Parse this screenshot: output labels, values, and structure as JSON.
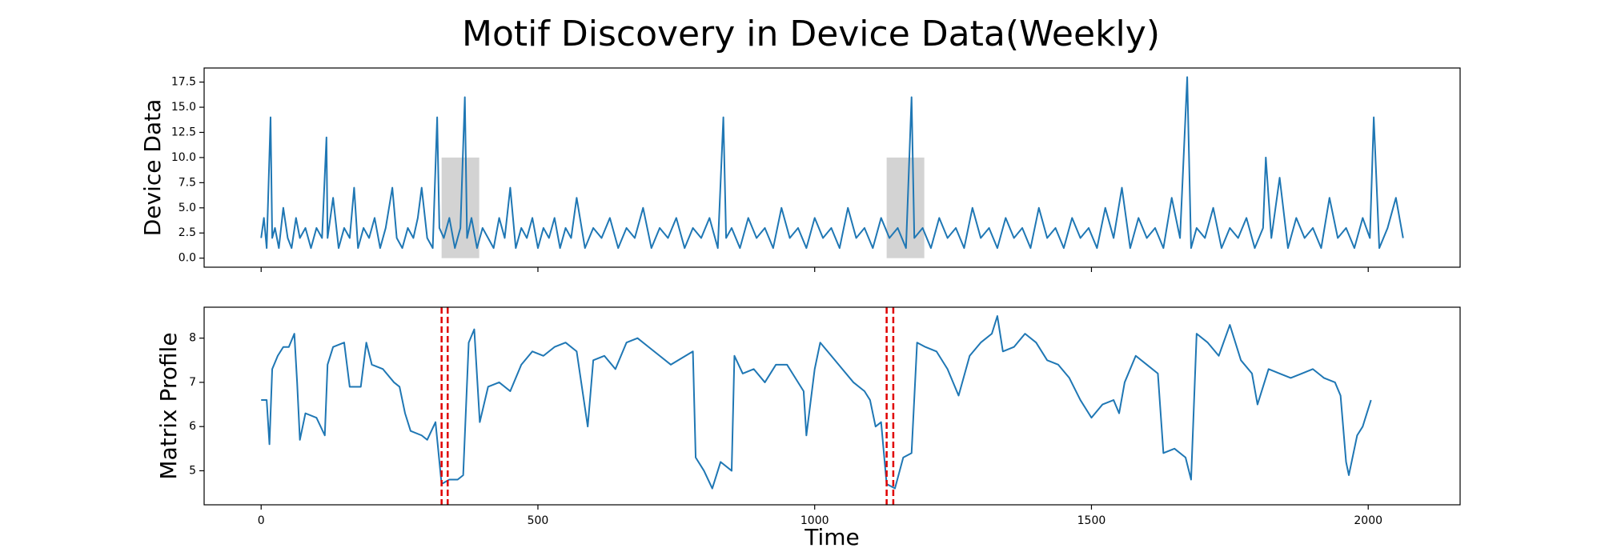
{
  "title": "Motif Discovery in Device Data(Weekly)",
  "chart_data": [
    {
      "type": "line",
      "ylabel": "Device Data",
      "color": "#1f77b4",
      "xlim": [
        -103,
        2166
      ],
      "ylim": [
        -0.9,
        18.9
      ],
      "yticks": [
        {
          "value": 0,
          "label": "0.0"
        },
        2.5,
        {
          "value": 5,
          "label": "5.0"
        },
        7.5,
        {
          "value": 10,
          "label": "10.0"
        },
        12.5,
        {
          "value": 15,
          "label": "15.0"
        },
        17.5
      ],
      "spans": [
        {
          "x": [
            326,
            394
          ],
          "y": [
            0,
            10
          ],
          "color": "#d3d3d3"
        },
        {
          "x": [
            1130,
            1198
          ],
          "y": [
            0,
            10
          ],
          "color": "#d3d3d3"
        }
      ],
      "x": [
        0,
        5,
        10,
        17,
        20,
        25,
        32,
        40,
        48,
        55,
        63,
        70,
        80,
        90,
        100,
        110,
        118,
        120,
        130,
        140,
        150,
        160,
        168,
        175,
        185,
        195,
        205,
        215,
        225,
        237,
        245,
        255,
        265,
        275,
        283,
        290,
        300,
        310,
        318,
        322,
        330,
        340,
        350,
        360,
        368,
        372,
        380,
        390,
        400,
        410,
        420,
        430,
        440,
        450,
        460,
        470,
        480,
        490,
        500,
        510,
        520,
        530,
        540,
        550,
        560,
        570,
        585,
        600,
        615,
        630,
        645,
        660,
        675,
        690,
        705,
        720,
        735,
        750,
        765,
        780,
        795,
        810,
        825,
        835,
        840,
        850,
        865,
        880,
        895,
        910,
        925,
        940,
        955,
        970,
        985,
        1000,
        1015,
        1030,
        1045,
        1060,
        1075,
        1090,
        1105,
        1120,
        1135,
        1150,
        1165,
        1175,
        1180,
        1195,
        1210,
        1225,
        1240,
        1255,
        1270,
        1285,
        1300,
        1315,
        1330,
        1345,
        1360,
        1375,
        1390,
        1405,
        1420,
        1435,
        1450,
        1465,
        1480,
        1495,
        1510,
        1525,
        1540,
        1555,
        1570,
        1585,
        1600,
        1615,
        1630,
        1645,
        1660,
        1673,
        1680,
        1690,
        1705,
        1720,
        1735,
        1750,
        1765,
        1780,
        1795,
        1810,
        1815,
        1825,
        1840,
        1855,
        1870,
        1885,
        1900,
        1915,
        1930,
        1945,
        1960,
        1975,
        1990,
        2003,
        2010,
        2020,
        2035,
        2050,
        2063
      ],
      "values": [
        2,
        4,
        1,
        14,
        2,
        3,
        1,
        5,
        2,
        1,
        4,
        2,
        3,
        1,
        3,
        2,
        12,
        2,
        6,
        1,
        3,
        2,
        7,
        1,
        3,
        2,
        4,
        1,
        3,
        7,
        2,
        1,
        3,
        2,
        4,
        7,
        2,
        1,
        14,
        3,
        2,
        4,
        1,
        3,
        16,
        2,
        4,
        1,
        3,
        2,
        1,
        4,
        2,
        7,
        1,
        3,
        2,
        4,
        1,
        3,
        2,
        4,
        1,
        3,
        2,
        6,
        1,
        3,
        2,
        4,
        1,
        3,
        2,
        5,
        1,
        3,
        2,
        4,
        1,
        3,
        2,
        4,
        1,
        14,
        2,
        3,
        1,
        4,
        2,
        3,
        1,
        5,
        2,
        3,
        1,
        4,
        2,
        3,
        1,
        5,
        2,
        3,
        1,
        4,
        2,
        3,
        1,
        16,
        2,
        3,
        1,
        4,
        2,
        3,
        1,
        5,
        2,
        3,
        1,
        4,
        2,
        3,
        1,
        5,
        2,
        3,
        1,
        4,
        2,
        3,
        1,
        5,
        2,
        7,
        1,
        4,
        2,
        3,
        1,
        6,
        2,
        18,
        1,
        3,
        2,
        5,
        1,
        3,
        2,
        4,
        1,
        3,
        10,
        2,
        8,
        1,
        4,
        2,
        3,
        1,
        6,
        2,
        3,
        1,
        4,
        2,
        14,
        1,
        3,
        6,
        2
      ]
    },
    {
      "type": "line",
      "ylabel": "Matrix Profile",
      "xlabel": "Time",
      "color": "#1f77b4",
      "xlim": [
        -103,
        2166
      ],
      "ylim": [
        4.23,
        8.7
      ],
      "xticks": [
        0,
        500,
        1000,
        1500,
        2000
      ],
      "yticks": [
        5,
        6,
        7,
        8
      ],
      "vlines": {
        "x": [
          326,
          337,
          1130,
          1142
        ],
        "color": "#e00000"
      },
      "x": [
        0,
        10,
        15,
        20,
        30,
        40,
        50,
        60,
        65,
        70,
        80,
        100,
        115,
        120,
        130,
        150,
        160,
        180,
        190,
        200,
        220,
        240,
        250,
        260,
        270,
        290,
        300,
        315,
        326,
        340,
        355,
        365,
        375,
        385,
        395,
        410,
        430,
        450,
        470,
        490,
        510,
        530,
        550,
        570,
        590,
        600,
        620,
        640,
        660,
        680,
        700,
        720,
        740,
        780,
        785,
        800,
        815,
        830,
        850,
        855,
        870,
        890,
        910,
        930,
        950,
        960,
        980,
        985,
        1000,
        1010,
        1030,
        1050,
        1070,
        1090,
        1100,
        1110,
        1120,
        1130,
        1145,
        1160,
        1175,
        1185,
        1200,
        1220,
        1240,
        1260,
        1280,
        1300,
        1320,
        1330,
        1340,
        1360,
        1380,
        1400,
        1420,
        1440,
        1460,
        1480,
        1500,
        1520,
        1540,
        1550,
        1560,
        1580,
        1600,
        1620,
        1630,
        1650,
        1670,
        1680,
        1690,
        1710,
        1730,
        1750,
        1770,
        1790,
        1800,
        1820,
        1840,
        1860,
        1880,
        1900,
        1920,
        1940,
        1950,
        1960,
        1965,
        1980,
        1990,
        2000,
        2005
      ],
      "values": [
        6.6,
        6.6,
        5.6,
        7.3,
        7.6,
        7.8,
        7.8,
        8.1,
        7.0,
        5.7,
        6.3,
        6.2,
        5.8,
        7.4,
        7.8,
        7.9,
        6.9,
        6.9,
        7.9,
        7.4,
        7.3,
        7.0,
        6.9,
        6.3,
        5.9,
        5.8,
        5.7,
        6.1,
        4.7,
        4.8,
        4.8,
        4.9,
        7.9,
        8.2,
        6.1,
        6.9,
        7.0,
        6.8,
        7.4,
        7.7,
        7.6,
        7.8,
        7.9,
        7.7,
        6.0,
        7.5,
        7.6,
        7.3,
        7.9,
        8.0,
        7.8,
        7.6,
        7.4,
        7.7,
        5.3,
        5.0,
        4.6,
        5.2,
        5.0,
        7.6,
        7.2,
        7.3,
        7.0,
        7.4,
        7.4,
        7.2,
        6.8,
        5.8,
        7.3,
        7.9,
        7.6,
        7.3,
        7.0,
        6.8,
        6.6,
        6.0,
        6.1,
        4.7,
        4.6,
        5.3,
        5.4,
        7.9,
        7.8,
        7.7,
        7.3,
        6.7,
        7.6,
        7.9,
        8.1,
        8.5,
        7.7,
        7.8,
        8.1,
        7.9,
        7.5,
        7.4,
        7.1,
        6.6,
        6.2,
        6.5,
        6.6,
        6.3,
        7.0,
        7.6,
        7.4,
        7.2,
        5.4,
        5.5,
        5.3,
        4.8,
        8.1,
        7.9,
        7.6,
        8.3,
        7.5,
        7.2,
        6.5,
        7.3,
        7.2,
        7.1,
        7.2,
        7.3,
        7.1,
        7.0,
        6.7,
        5.2,
        4.9,
        5.8,
        6.0,
        6.4,
        6.6
      ]
    }
  ]
}
